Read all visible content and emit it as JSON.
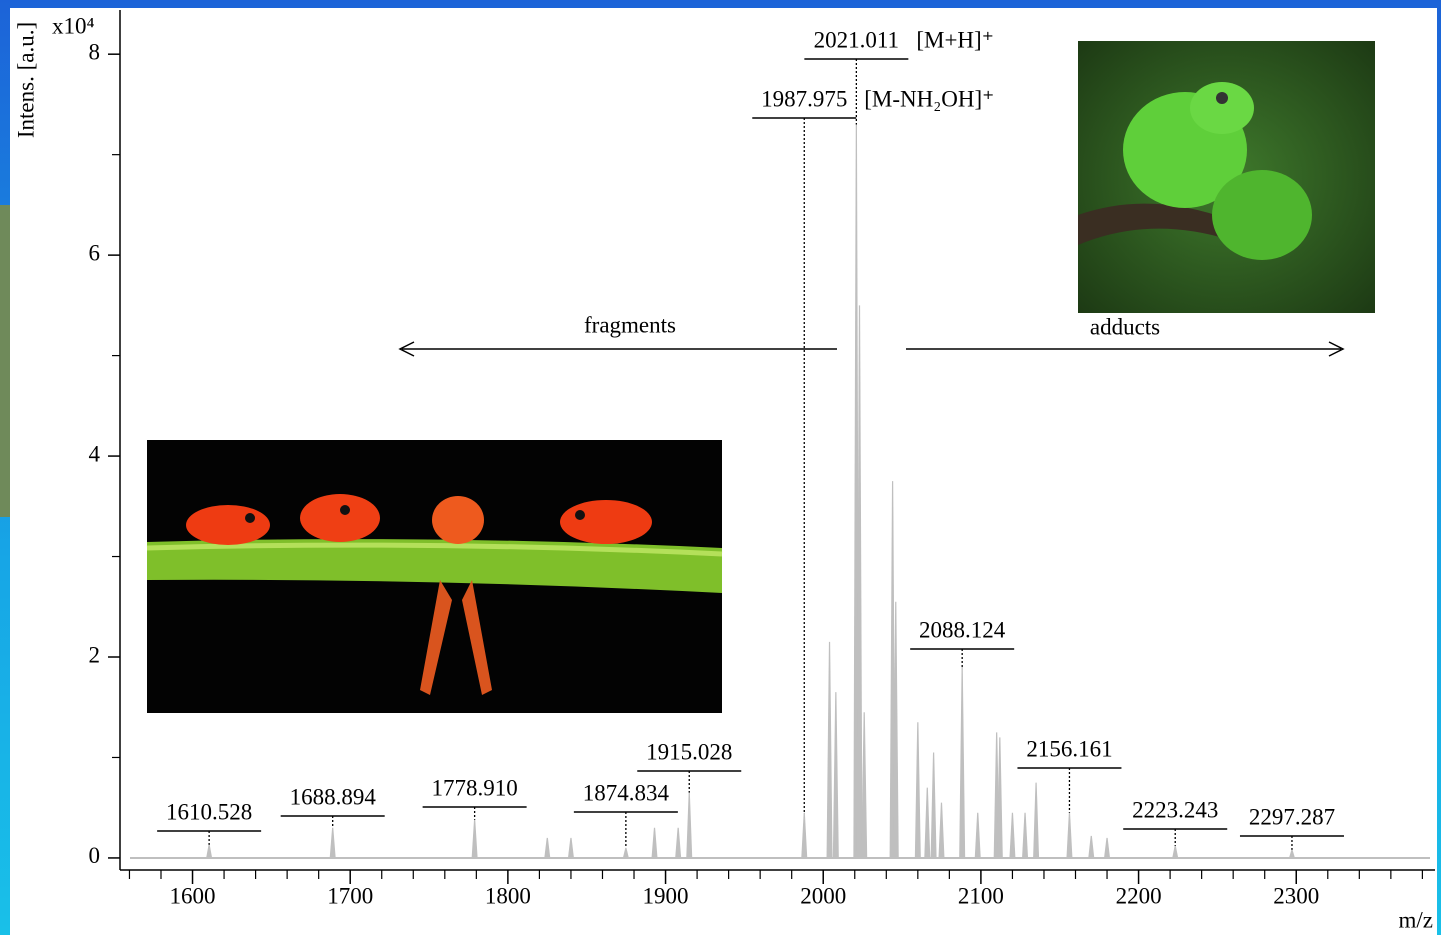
{
  "chart_data": {
    "type": "spectrum",
    "y_label": "Intens. [a.u.]",
    "y_scale_label": "x10⁴",
    "x_label": "m/z",
    "color": "#bfbfbf",
    "x": [
      1610.528,
      1688.894,
      1778.91,
      1825,
      1840,
      1874.834,
      1893,
      1908,
      1915.028,
      1987.975,
      2004,
      2008,
      2021.011,
      2023,
      2026,
      2044,
      2046,
      2060,
      2066,
      2070,
      2075,
      2088.124,
      2098,
      2110,
      2112,
      2120,
      2128,
      2135,
      2156.161,
      2170,
      2180,
      2223.243,
      2297.287
    ],
    "values": [
      0.13,
      0.3,
      0.38,
      0.2,
      0.2,
      0.1,
      0.3,
      0.3,
      0.65,
      0.45,
      2.15,
      1.65,
      7.3,
      5.5,
      1.45,
      3.75,
      2.55,
      1.35,
      0.7,
      1.05,
      0.55,
      1.9,
      0.45,
      1.25,
      1.2,
      0.45,
      0.45,
      0.75,
      0.45,
      0.22,
      0.2,
      0.12,
      0.08
    ],
    "peak_labels": [
      1610.528,
      1688.894,
      {
        "value": 1778.91,
        "label": "1778.910"
      },
      1874.834,
      1915.028,
      1987.975,
      2021.011,
      2088.124,
      2156.161,
      2223.243,
      2297.287
    ],
    "ion_labels": [
      {
        "peak": 2021.011,
        "label": "[M+H]⁺"
      },
      {
        "peak": 1987.975,
        "label": "[M-NH₂OH]⁺"
      }
    ],
    "annotations": {
      "fragments": "fragments",
      "adducts": "adducts"
    },
    "xlim": [
      1554,
      2388
    ],
    "ylim": [
      -0.12,
      8.4
    ],
    "xticks": [
      1600,
      1700,
      1800,
      1900,
      2000,
      2100,
      2200,
      2300
    ],
    "xminorticks": [
      1560,
      1580,
      1620,
      1640,
      1660,
      1680,
      1720,
      1740,
      1760,
      1780,
      1820,
      1840,
      1860,
      1880,
      1920,
      1940,
      1960,
      1980,
      2020,
      2040,
      2060,
      2080,
      2120,
      2140,
      2160,
      2180,
      2220,
      2240,
      2260,
      2280,
      2320,
      2340,
      2360,
      2380
    ],
    "yticks": [
      0,
      2,
      4,
      6,
      8
    ],
    "yminorticks": [
      1,
      3,
      5,
      7
    ]
  }
}
